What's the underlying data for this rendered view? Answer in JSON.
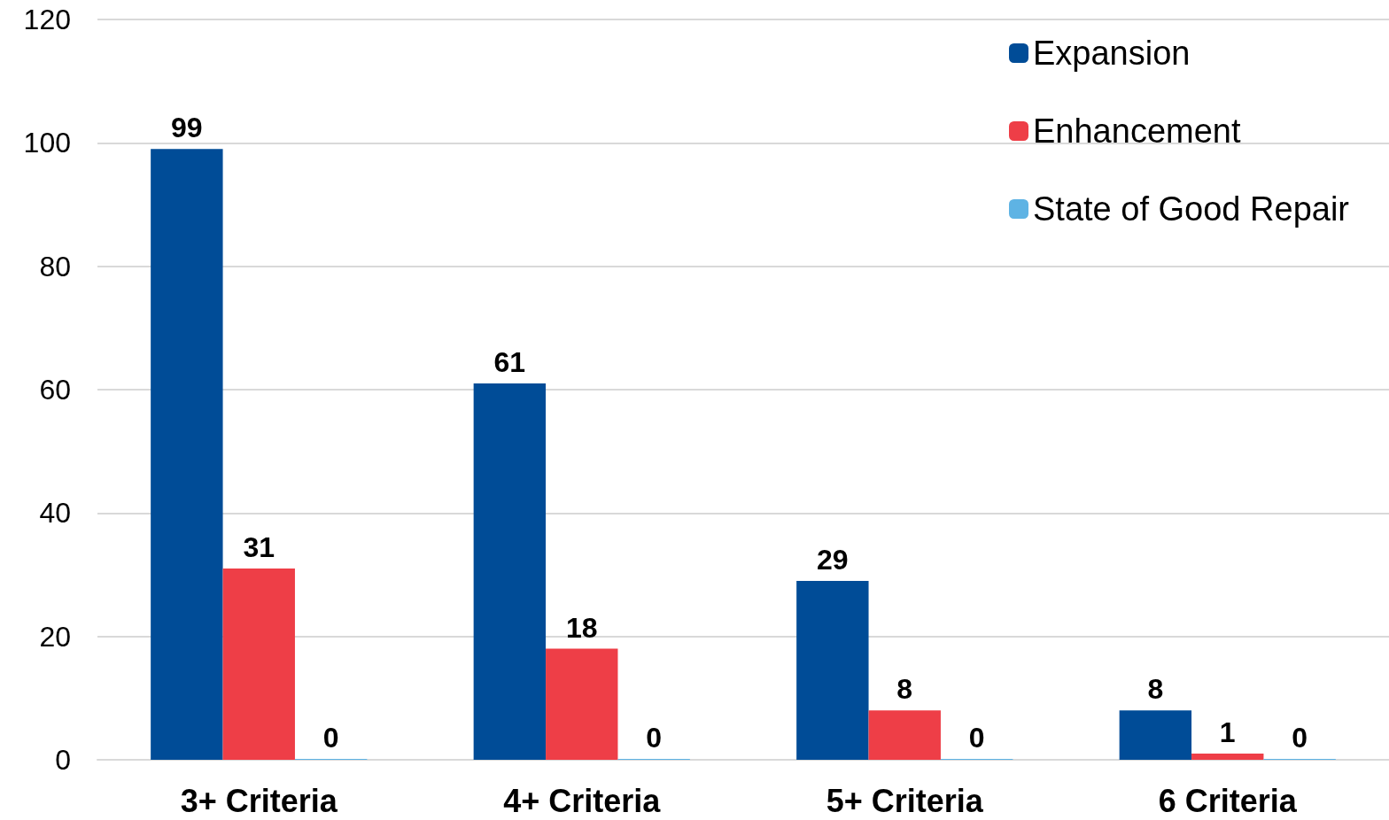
{
  "chart_data": {
    "type": "bar",
    "categories": [
      "3+ Criteria",
      "4+ Criteria",
      "5+ Criteria",
      "6 Criteria"
    ],
    "series": [
      {
        "name": "Expansion",
        "color": "#004c97",
        "values": [
          99,
          61,
          29,
          8
        ]
      },
      {
        "name": "Enhancement",
        "color": "#ee3e47",
        "values": [
          31,
          18,
          8,
          1
        ]
      },
      {
        "name": "State of Good Repair",
        "color": "#5eb3e4",
        "values": [
          0,
          0,
          0,
          0
        ]
      }
    ],
    "ylim": [
      0,
      120
    ],
    "yticks": [
      0,
      20,
      40,
      60,
      80,
      100,
      120
    ],
    "grid": "y",
    "legend": "top right",
    "data_labels": true
  }
}
